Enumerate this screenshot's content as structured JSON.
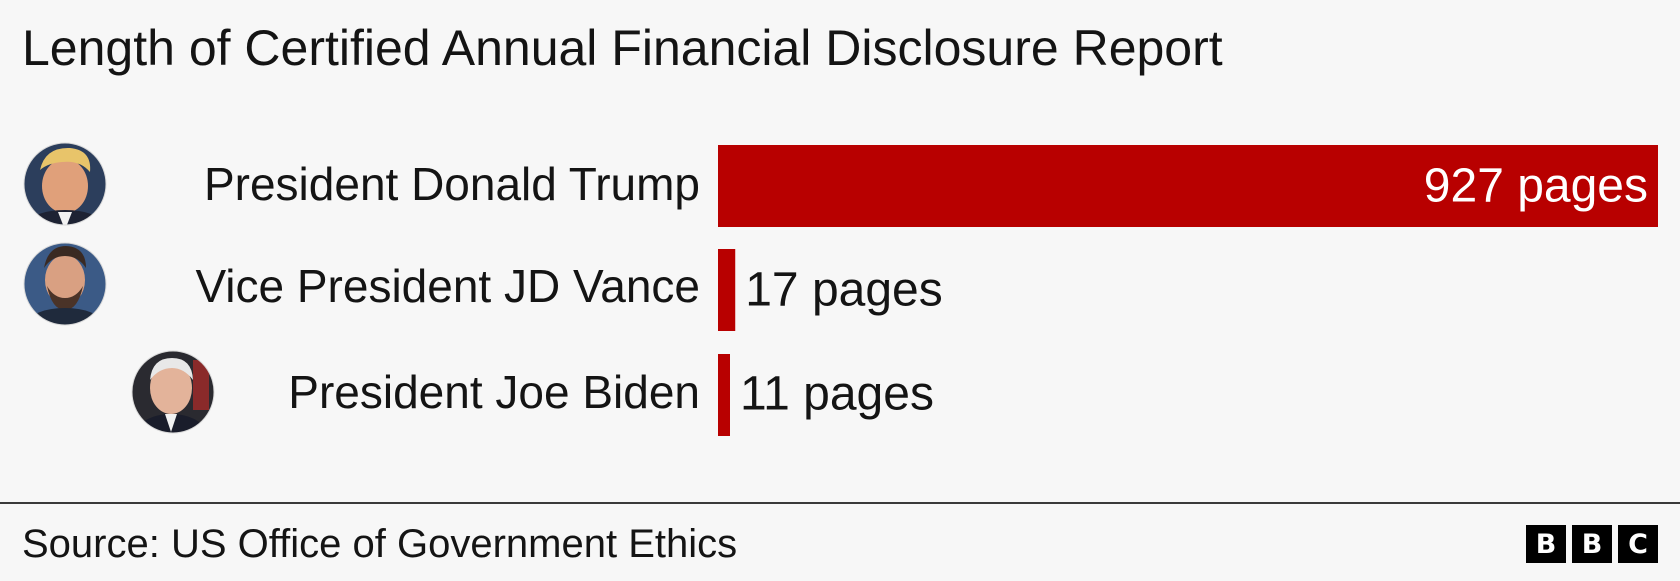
{
  "title": "Length of Certified Annual Financial Disclosure Report",
  "source": "Source: US Office of Government Ethics",
  "brand": {
    "letters": [
      "B",
      "B",
      "C"
    ]
  },
  "colors": {
    "bar": "#b80000",
    "background": "#f7f7f7",
    "text": "#141414"
  },
  "chart_data": {
    "type": "bar",
    "orientation": "horizontal",
    "title": "Length of Certified Annual Financial Disclosure Report",
    "xlabel": "",
    "ylabel": "",
    "xlim": [
      0,
      927
    ],
    "grid": false,
    "categories": [
      "President Donald Trump",
      "Vice President JD Vance",
      "President Joe Biden"
    ],
    "values": [
      927,
      17,
      11
    ],
    "data_labels": [
      "927 pages",
      "17 pages",
      "11 pages"
    ],
    "avatars": [
      "trump-photo",
      "vance-photo",
      "biden-photo"
    ]
  }
}
